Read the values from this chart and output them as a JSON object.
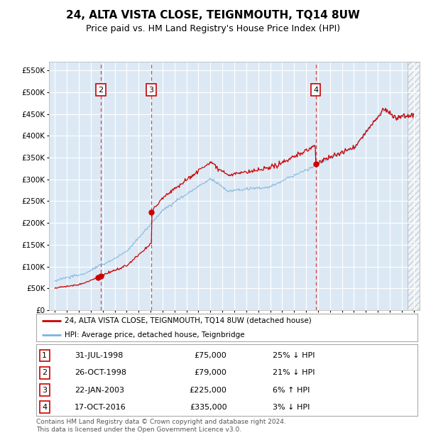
{
  "title": "24, ALTA VISTA CLOSE, TEIGNMOUTH, TQ14 8UW",
  "subtitle": "Price paid vs. HM Land Registry's House Price Index (HPI)",
  "title_fontsize": 11,
  "subtitle_fontsize": 9,
  "background_color": "#dce9f5",
  "plot_bg_color": "#dce9f5",
  "hpi_color": "#7fb3d9",
  "price_color": "#cc0000",
  "dashed_line_color": "#cc0000",
  "transactions": [
    {
      "label": "1",
      "date_str": "31-JUL-1998",
      "date_x": 1998.58,
      "price": 75000,
      "pct": "25%",
      "direction": "↓"
    },
    {
      "label": "2",
      "date_str": "26-OCT-1998",
      "date_x": 1998.83,
      "price": 79000,
      "pct": "21%",
      "direction": "↓"
    },
    {
      "label": "3",
      "date_str": "22-JAN-2003",
      "date_x": 2003.06,
      "price": 225000,
      "pct": "6%",
      "direction": "↑"
    },
    {
      "label": "4",
      "date_str": "17-OCT-2016",
      "date_x": 2016.8,
      "price": 335000,
      "pct": "3%",
      "direction": "↓"
    }
  ],
  "footer_lines": [
    "Contains HM Land Registry data © Crown copyright and database right 2024.",
    "This data is licensed under the Open Government Licence v3.0."
  ],
  "legend_entries": [
    "24, ALTA VISTA CLOSE, TEIGNMOUTH, TQ14 8UW (detached house)",
    "HPI: Average price, detached house, Teignbridge"
  ],
  "ylim": [
    0,
    570000
  ],
  "yticks": [
    0,
    50000,
    100000,
    150000,
    200000,
    250000,
    300000,
    350000,
    400000,
    450000,
    500000,
    550000
  ],
  "xlim": [
    1994.5,
    2025.5
  ],
  "xtick_years": [
    1995,
    1996,
    1997,
    1998,
    1999,
    2000,
    2001,
    2002,
    2003,
    2004,
    2005,
    2006,
    2007,
    2008,
    2009,
    2010,
    2011,
    2012,
    2013,
    2014,
    2015,
    2016,
    2017,
    2018,
    2019,
    2020,
    2021,
    2022,
    2023,
    2024,
    2025
  ],
  "hatch_start": 2024.5
}
